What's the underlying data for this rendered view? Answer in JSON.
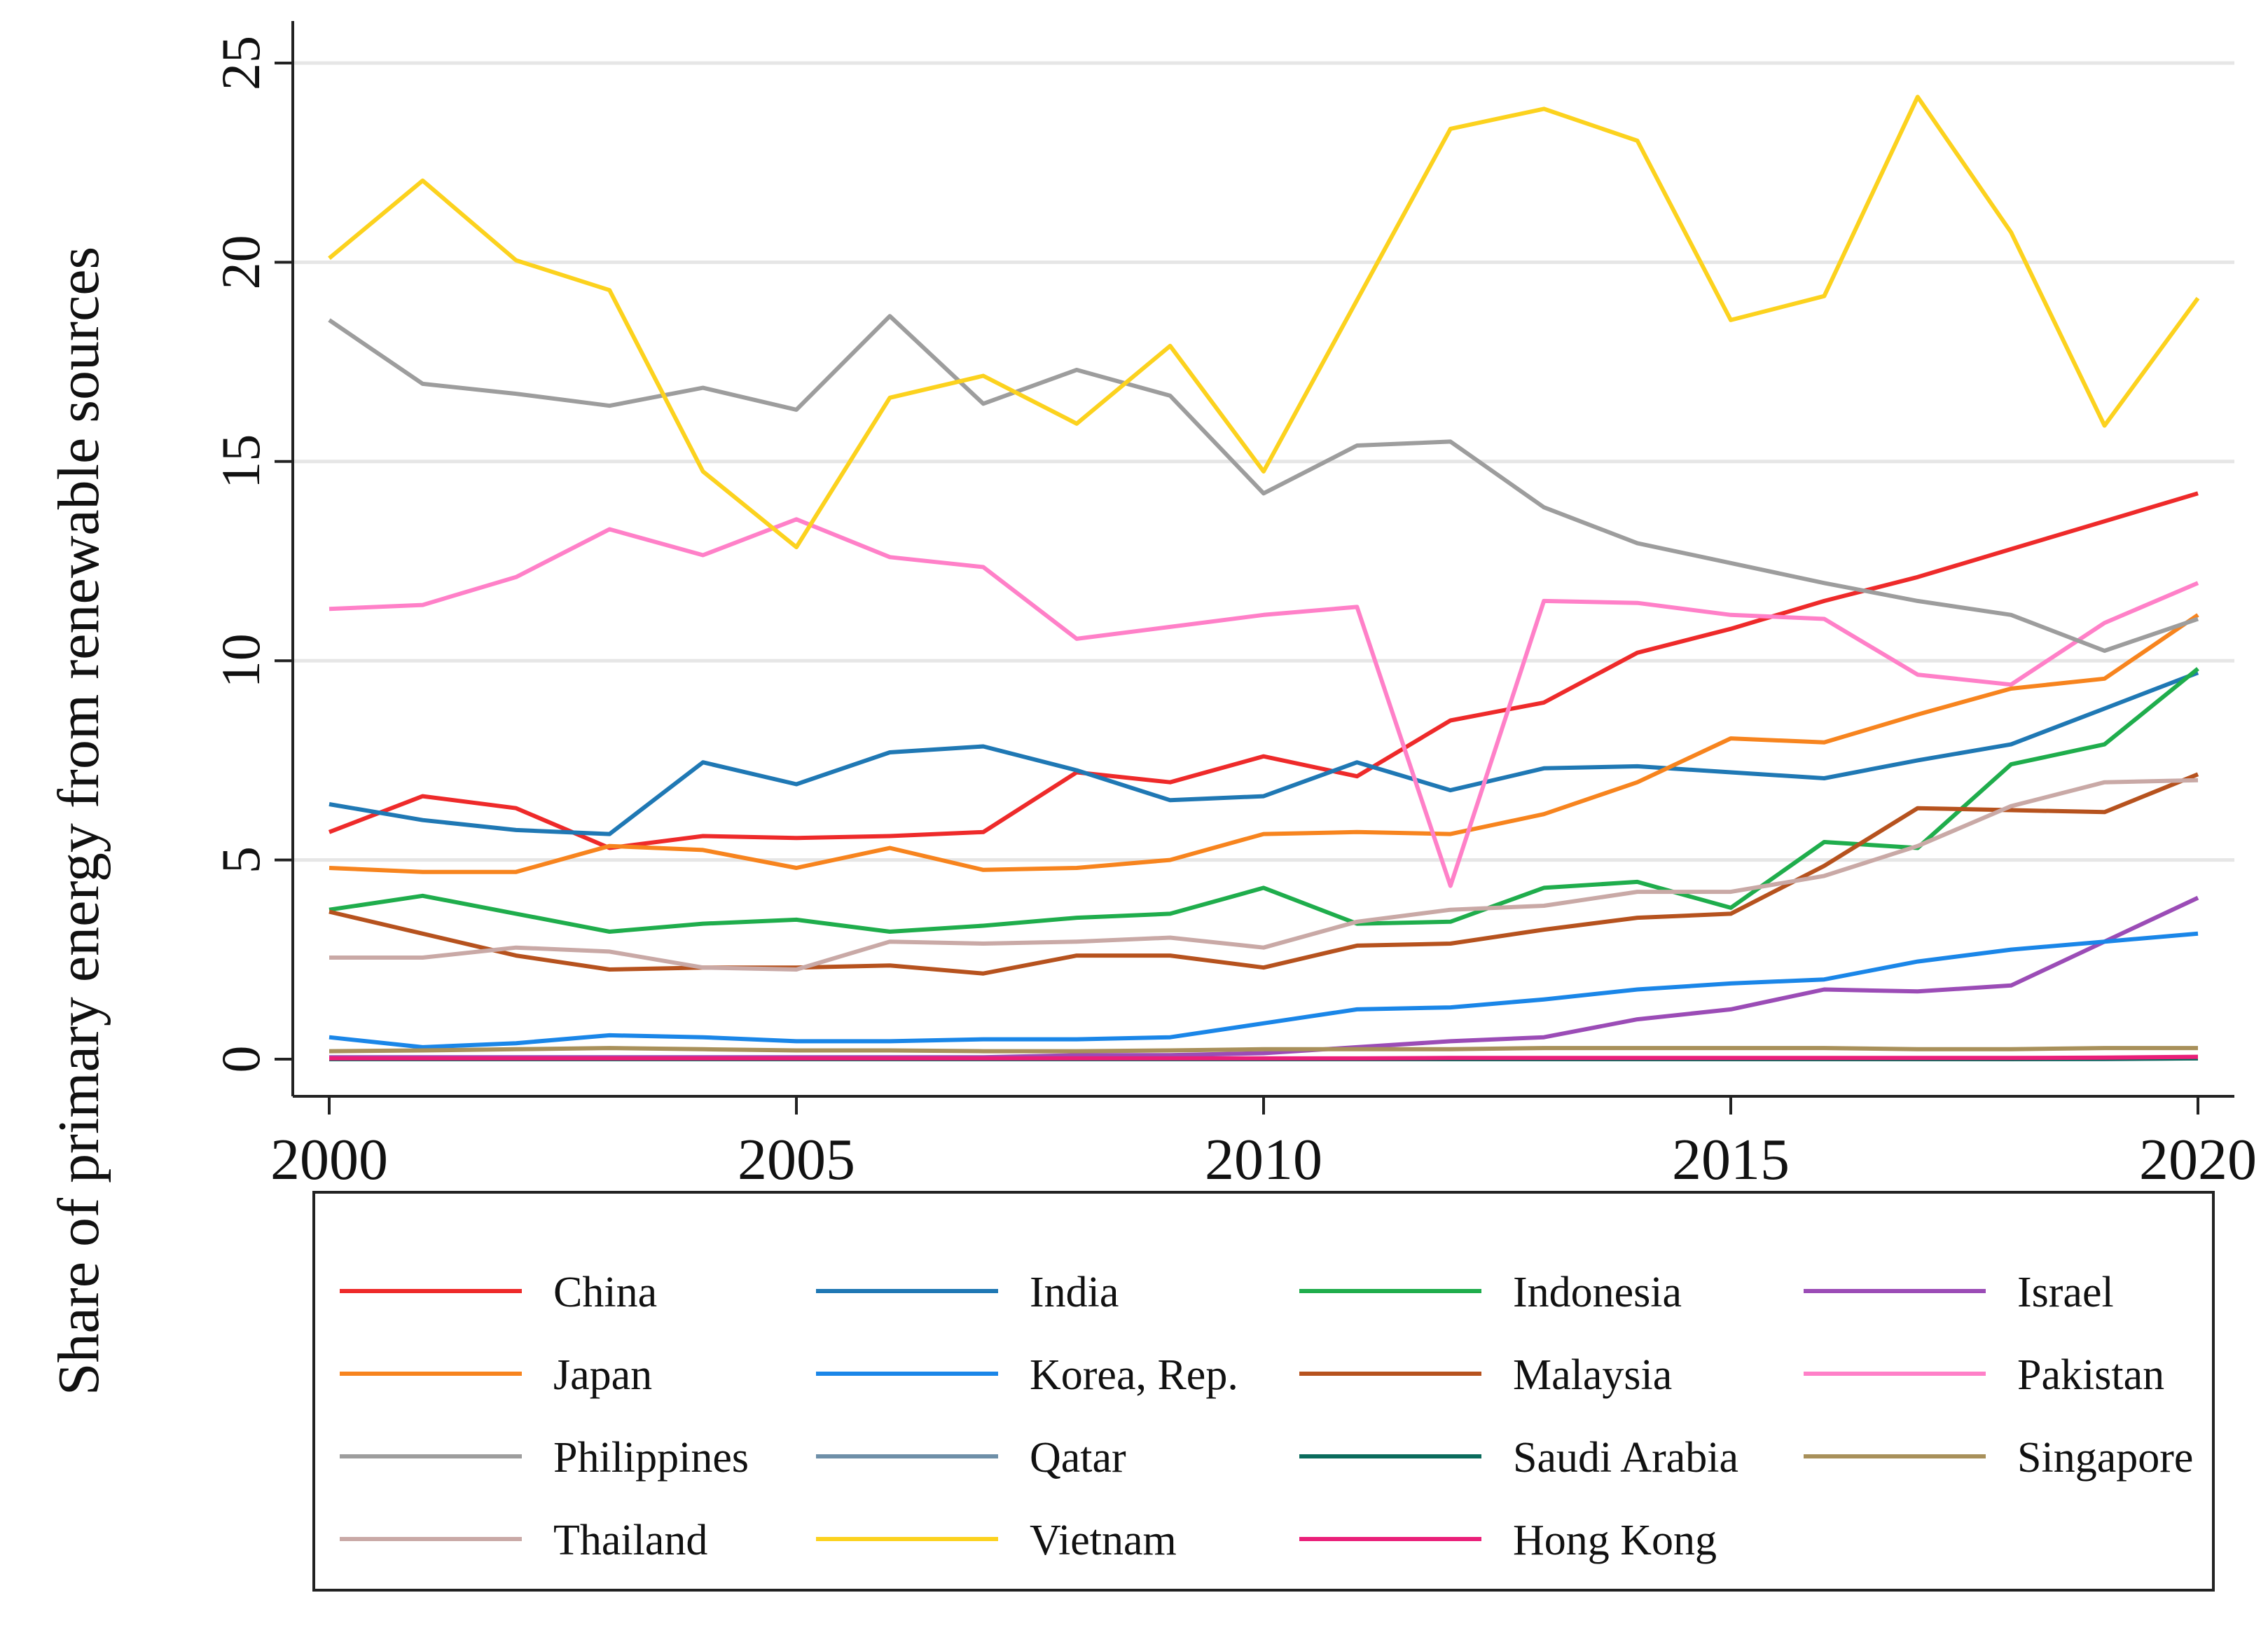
{
  "chart_data": {
    "type": "line",
    "title": "",
    "xlabel": "",
    "ylabel": "Share of primary energy from renewable sources",
    "xlim": [
      2000,
      2020
    ],
    "ylim": [
      0,
      25
    ],
    "x_ticks": [
      "2000",
      "2005",
      "2010",
      "2015",
      "2020"
    ],
    "y_ticks": [
      "0",
      "5",
      "10",
      "15",
      "20",
      "25"
    ],
    "grid": "horizontal",
    "legend_position": "bottom",
    "x": [
      2000,
      2001,
      2002,
      2003,
      2004,
      2005,
      2006,
      2007,
      2008,
      2009,
      2010,
      2011,
      2012,
      2013,
      2014,
      2015,
      2016,
      2017,
      2018,
      2019,
      2020
    ],
    "series": [
      {
        "name": "China",
        "color": "#ee2a2a",
        "values": [
          5.7,
          6.6,
          6.3,
          5.3,
          5.6,
          5.55,
          5.6,
          5.7,
          7.2,
          6.95,
          7.6,
          7.1,
          8.5,
          8.95,
          10.2,
          10.8,
          11.5,
          12.1,
          12.8,
          13.5,
          14.2
        ]
      },
      {
        "name": "India",
        "color": "#1f78b4",
        "values": [
          6.4,
          6.0,
          5.75,
          5.65,
          7.45,
          6.9,
          7.7,
          7.85,
          7.25,
          6.5,
          6.6,
          7.45,
          6.75,
          7.3,
          7.35,
          7.2,
          7.05,
          7.5,
          7.9,
          8.8,
          9.7
        ]
      },
      {
        "name": "Indonesia",
        "color": "#1fad4c",
        "values": [
          3.75,
          4.1,
          3.65,
          3.2,
          3.4,
          3.5,
          3.2,
          3.35,
          3.55,
          3.65,
          4.3,
          3.4,
          3.45,
          4.3,
          4.45,
          3.8,
          5.45,
          5.3,
          7.4,
          7.9,
          9.8
        ]
      },
      {
        "name": "Israel",
        "color": "#9b4cb6",
        "values": [
          0.05,
          0.05,
          0.05,
          0.05,
          0.05,
          0.05,
          0.05,
          0.05,
          0.1,
          0.1,
          0.15,
          0.3,
          0.45,
          0.55,
          1.0,
          1.25,
          1.75,
          1.7,
          1.85,
          2.95,
          4.05
        ]
      },
      {
        "name": "Japan",
        "color": "#f7841e",
        "values": [
          4.8,
          4.7,
          4.7,
          5.35,
          5.25,
          4.8,
          5.3,
          4.75,
          4.8,
          5.0,
          5.65,
          5.7,
          5.65,
          6.15,
          6.95,
          8.05,
          7.95,
          8.65,
          9.3,
          9.55,
          11.15
        ]
      },
      {
        "name": "Korea, Rep.",
        "color": "#1a86e8",
        "values": [
          0.55,
          0.3,
          0.4,
          0.6,
          0.55,
          0.45,
          0.45,
          0.5,
          0.5,
          0.55,
          0.9,
          1.25,
          1.3,
          1.5,
          1.75,
          1.9,
          2.0,
          2.45,
          2.75,
          2.95,
          3.15
        ]
      },
      {
        "name": "Malaysia",
        "color": "#b6521e",
        "values": [
          3.7,
          3.15,
          2.6,
          2.25,
          2.3,
          2.3,
          2.35,
          2.15,
          2.6,
          2.6,
          2.3,
          2.85,
          2.9,
          3.25,
          3.55,
          3.65,
          4.85,
          6.3,
          6.25,
          6.2,
          7.15
        ]
      },
      {
        "name": "Pakistan",
        "color": "#ff80c8",
        "values": [
          11.3,
          11.4,
          12.1,
          13.3,
          12.65,
          13.55,
          12.6,
          12.35,
          10.55,
          10.85,
          11.15,
          11.35,
          4.35,
          11.5,
          11.45,
          11.15,
          11.05,
          9.65,
          9.4,
          10.95,
          11.95
        ]
      },
      {
        "name": "Philippines",
        "color": "#9d9d9d",
        "values": [
          18.55,
          16.95,
          16.7,
          16.4,
          16.85,
          16.3,
          18.65,
          16.45,
          17.3,
          16.65,
          14.2,
          15.4,
          15.5,
          13.85,
          12.95,
          12.45,
          11.95,
          11.5,
          11.15,
          10.25,
          11.05
        ]
      },
      {
        "name": "Qatar",
        "color": "#6e8fa8",
        "values": [
          0,
          0,
          0,
          0,
          0,
          0,
          0,
          0,
          0,
          0,
          0,
          0,
          0,
          0,
          0,
          0,
          0,
          0,
          0,
          0,
          0.02
        ]
      },
      {
        "name": "Saudi Arabia",
        "color": "#0a6b5c",
        "values": [
          0,
          0,
          0,
          0,
          0,
          0,
          0,
          0,
          0,
          0,
          0,
          0,
          0,
          0,
          0,
          0,
          0,
          0,
          0,
          0.01,
          0.02
        ]
      },
      {
        "name": "Singapore",
        "color": "#a8905a",
        "values": [
          0.2,
          0.22,
          0.25,
          0.28,
          0.25,
          0.22,
          0.22,
          0.2,
          0.2,
          0.22,
          0.25,
          0.25,
          0.25,
          0.28,
          0.28,
          0.28,
          0.28,
          0.25,
          0.25,
          0.28,
          0.28
        ]
      },
      {
        "name": "Thailand",
        "color": "#c9a9a6",
        "values": [
          2.55,
          2.55,
          2.8,
          2.7,
          2.3,
          2.25,
          2.95,
          2.9,
          2.95,
          3.05,
          2.8,
          3.45,
          3.75,
          3.85,
          4.2,
          4.2,
          4.6,
          5.35,
          6.35,
          6.95,
          7.0
        ]
      },
      {
        "name": "Vietnam",
        "color": "#fcd21e",
        "values": [
          20.1,
          22.05,
          20.05,
          19.3,
          14.75,
          12.85,
          16.6,
          17.15,
          15.95,
          17.9,
          14.75,
          19.05,
          23.35,
          23.85,
          23.05,
          18.55,
          19.15,
          24.15,
          20.75,
          15.9,
          19.1
        ]
      },
      {
        "name": "Hong Kong",
        "color": "#ea1f79",
        "values": [
          0.02,
          0.02,
          0.02,
          0.02,
          0.02,
          0.02,
          0.02,
          0.02,
          0.02,
          0.02,
          0.02,
          0.02,
          0.03,
          0.03,
          0.03,
          0.03,
          0.03,
          0.03,
          0.03,
          0.04,
          0.06
        ]
      }
    ]
  }
}
